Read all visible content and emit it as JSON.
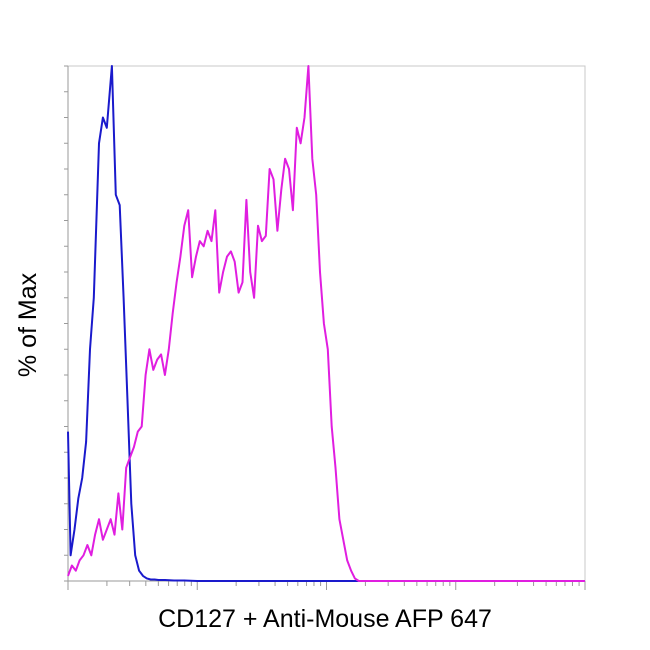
{
  "chart_data": {
    "type": "line",
    "title": "",
    "xlabel": "CD127 + Anti-Mouse AFP 647",
    "ylabel": "% of Max",
    "xscale": "log",
    "ylim": [
      0,
      100
    ],
    "grid": false,
    "legend": "none",
    "x_axis_decades": 4,
    "y_minor_tick_step": 5,
    "series": [
      {
        "color": "#1a1acc",
        "x_decades": [
          0.0,
          0.02,
          0.05,
          0.08,
          0.11,
          0.14,
          0.17,
          0.2,
          0.24,
          0.27,
          0.3,
          0.34,
          0.37,
          0.4,
          0.43,
          0.46,
          0.49,
          0.52,
          0.55,
          0.58,
          0.61,
          0.64,
          0.67,
          0.7,
          0.75,
          0.82,
          0.9,
          1.0,
          1.1,
          4.0
        ],
        "y": [
          29,
          5,
          10,
          16,
          20,
          27,
          45,
          55,
          85,
          90,
          88,
          100,
          75,
          73,
          55,
          35,
          15,
          5,
          2,
          1,
          0.5,
          0.3,
          0.3,
          0.2,
          0.2,
          0.1,
          0.1,
          0,
          0,
          0
        ]
      },
      {
        "color": "#e01ee0",
        "x_decades": [
          0.0,
          0.03,
          0.06,
          0.09,
          0.12,
          0.15,
          0.18,
          0.21,
          0.24,
          0.27,
          0.3,
          0.33,
          0.36,
          0.39,
          0.42,
          0.45,
          0.48,
          0.51,
          0.54,
          0.57,
          0.6,
          0.63,
          0.66,
          0.69,
          0.72,
          0.75,
          0.78,
          0.81,
          0.84,
          0.87,
          0.9,
          0.93,
          0.96,
          0.99,
          1.02,
          1.05,
          1.08,
          1.11,
          1.14,
          1.17,
          1.2,
          1.23,
          1.26,
          1.29,
          1.32,
          1.35,
          1.38,
          1.41,
          1.44,
          1.47,
          1.5,
          1.53,
          1.56,
          1.59,
          1.62,
          1.65,
          1.68,
          1.71,
          1.74,
          1.77,
          1.8,
          1.83,
          1.86,
          1.89,
          1.92,
          1.95,
          1.98,
          2.01,
          2.04,
          2.07,
          2.1,
          2.13,
          2.16,
          2.19,
          2.22,
          2.25,
          2.28,
          2.31,
          2.34,
          2.37,
          2.4,
          2.43,
          2.46,
          2.49,
          2.52,
          2.55,
          2.58,
          2.61,
          2.64,
          2.67,
          2.7,
          2.73,
          2.76,
          2.79,
          2.82,
          2.85,
          2.88,
          2.91,
          4.0
        ],
        "y": [
          1,
          3,
          2,
          4,
          5,
          7,
          5,
          9,
          12,
          8,
          10,
          12,
          9,
          17,
          10,
          22,
          24,
          26,
          29,
          30,
          40,
          45,
          41,
          43,
          44,
          40,
          45,
          52,
          58,
          63,
          69,
          72,
          59,
          63,
          66,
          65,
          68,
          66,
          72,
          56,
          60,
          63,
          64,
          62,
          56,
          58,
          74,
          60,
          55,
          69,
          66,
          67,
          80,
          78,
          68,
          76,
          82,
          80,
          72,
          88,
          85,
          90,
          100,
          82,
          75,
          60,
          50,
          45,
          30,
          22,
          12,
          8,
          4,
          2,
          0.5,
          0,
          0,
          0,
          0,
          0,
          0,
          0,
          0,
          0,
          0,
          0,
          0,
          0,
          0,
          0,
          0,
          0,
          0,
          0,
          0,
          0,
          0,
          0,
          0
        ]
      }
    ]
  }
}
